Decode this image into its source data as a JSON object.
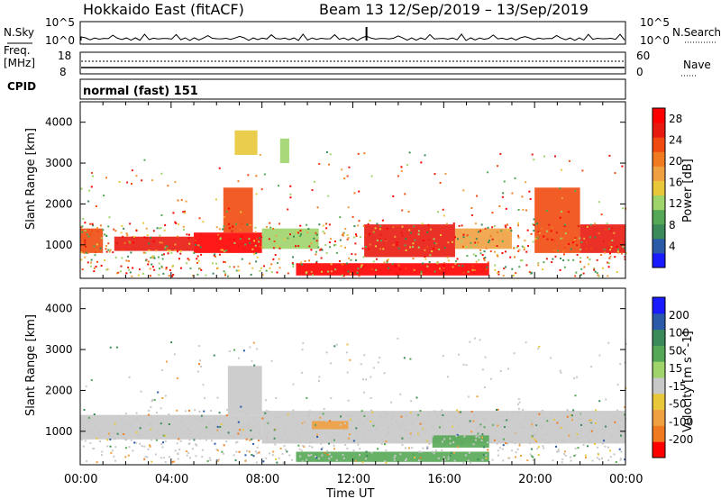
{
  "header": {
    "station": "Hokkaido East (fitACF)",
    "beam_info": "Beam 13  12/Sep/2019 – 13/Sep/2019"
  },
  "strips": {
    "nsky_label": "N.Sky",
    "nsky_ticks": [
      "10^5",
      "10^0"
    ],
    "nsky_right_ticks": [
      "10^5",
      "10^0"
    ],
    "nsearch_label": "N.Search",
    "freq_label": "Freq.",
    "freq_unit": "[MHz]",
    "freq_ticks": [
      "18",
      "8"
    ],
    "nave_ticks": [
      "60",
      "0"
    ],
    "nave_label": "Nave",
    "cpid_label": "CPID",
    "cpid_value": "normal (fast) 151"
  },
  "colors": {
    "power": [
      "#1a1aff",
      "#2a5aa8",
      "#3a8a5a",
      "#55a855",
      "#9fd46a",
      "#e8c83a",
      "#f0a040",
      "#f07a20",
      "#f04a10",
      "#e81a10",
      "#ff0000"
    ],
    "velocity": [
      "#ff0000",
      "#f07a20",
      "#f0a040",
      "#e8c83a",
      "#c8c8c8",
      "#9fd46a",
      "#55a855",
      "#3a8a5a",
      "#2a5aa8",
      "#1a1aff"
    ],
    "velocity_gray": "#c8c8c8"
  },
  "chart_data": [
    {
      "type": "heatmap",
      "title": "Power",
      "xlabel": "",
      "ylabel": "Slant Range [km]",
      "yticks": [
        "1000",
        "2000",
        "3000",
        "4000"
      ],
      "ylim": [
        180,
        4500
      ],
      "colorbar_label": "Power [dB]",
      "colorbar_ticks": [
        "4",
        "8",
        "12",
        "16",
        "20",
        "24",
        "28"
      ],
      "colorbar_range": [
        0,
        30
      ],
      "regions": [
        {
          "x0": 0.0,
          "x1": 1.0,
          "y0": 800,
          "y1": 1400,
          "value": 24
        },
        {
          "x0": 1.5,
          "x1": 5.0,
          "y0": 850,
          "y1": 1200,
          "value": 26
        },
        {
          "x0": 5.0,
          "x1": 8.0,
          "y0": 800,
          "y1": 1300,
          "value": 28
        },
        {
          "x0": 6.3,
          "x1": 7.6,
          "y0": 1300,
          "y1": 2400,
          "value": 22
        },
        {
          "x0": 6.8,
          "x1": 7.8,
          "y0": 3200,
          "y1": 3800,
          "value": 14
        },
        {
          "x0": 8.8,
          "x1": 9.2,
          "y0": 3000,
          "y1": 3600,
          "value": 12
        },
        {
          "x0": 8.0,
          "x1": 10.5,
          "y0": 900,
          "y1": 1400,
          "value": 12
        },
        {
          "x0": 12.5,
          "x1": 16.5,
          "y0": 700,
          "y1": 1500,
          "value": 26
        },
        {
          "x0": 16.5,
          "x1": 19.0,
          "y0": 900,
          "y1": 1400,
          "value": 18
        },
        {
          "x0": 20.0,
          "x1": 22.0,
          "y0": 800,
          "y1": 2400,
          "value": 24
        },
        {
          "x0": 22.0,
          "x1": 24.0,
          "y0": 800,
          "y1": 1500,
          "value": 26
        },
        {
          "x0": 9.5,
          "x1": 18.0,
          "y0": 250,
          "y1": 550,
          "value": 28
        }
      ]
    },
    {
      "type": "heatmap",
      "title": "Velocity",
      "xlabel": "Time UT",
      "ylabel": "Slant Range [km]",
      "yticks": [
        "1000",
        "2000",
        "3000",
        "4000"
      ],
      "xticks": [
        "00:00",
        "04:00",
        "08:00",
        "12:00",
        "16:00",
        "20:00",
        "00:00"
      ],
      "xlim": [
        0,
        24
      ],
      "ylim": [
        180,
        4500
      ],
      "colorbar_label": "Velocity [m s^-1]",
      "colorbar_ticks": [
        "200",
        "100",
        "50",
        "15",
        "-15",
        "-50",
        "-100",
        "-200"
      ],
      "regions": [
        {
          "x0": 0.0,
          "x1": 8.0,
          "y0": 800,
          "y1": 1400,
          "value": 0
        },
        {
          "x0": 8.0,
          "x1": 24.0,
          "y0": 700,
          "y1": 1500,
          "value": 0
        },
        {
          "x0": 6.5,
          "x1": 8.0,
          "y0": 1400,
          "y1": 2600,
          "value": 0
        },
        {
          "x0": 10.2,
          "x1": 11.8,
          "y0": 1050,
          "y1": 1250,
          "value": -60
        },
        {
          "x0": 15.5,
          "x1": 18.0,
          "y0": 600,
          "y1": 900,
          "value": 40
        },
        {
          "x0": 9.5,
          "x1": 18.0,
          "y0": 250,
          "y1": 500,
          "value": 30
        }
      ]
    }
  ]
}
